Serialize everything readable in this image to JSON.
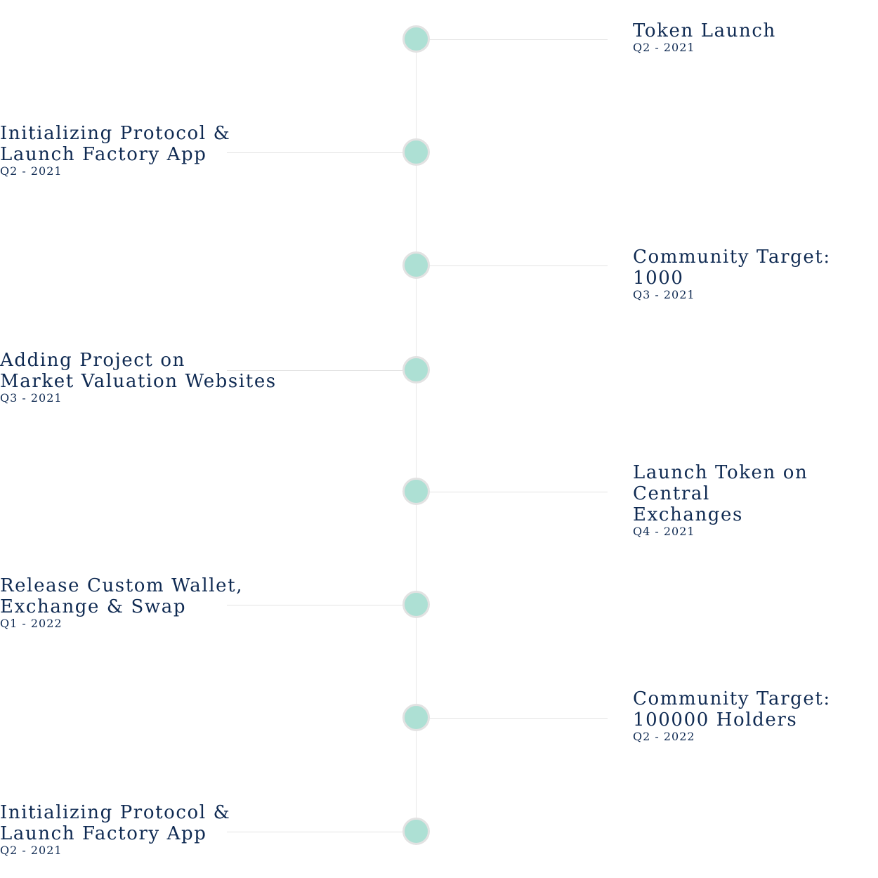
{
  "timeline": {
    "milestones": [
      {
        "side": "right",
        "title": "Token Launch",
        "date": "Q2 - 2021"
      },
      {
        "side": "left",
        "title": "Initializing Protocol &\nLaunch Factory App",
        "date": "Q2 - 2021"
      },
      {
        "side": "right",
        "title": "Community Target: 1000",
        "date": "Q3 - 2021"
      },
      {
        "side": "left",
        "title": "Adding Project on\nMarket Valuation Websites",
        "date": "Q3 - 2021"
      },
      {
        "side": "right",
        "title": "Launch Token on Central\nExchanges",
        "date": "Q4 - 2021"
      },
      {
        "side": "left",
        "title": "Release Custom Wallet,\nExchange & Swap",
        "date": "Q1 - 2022"
      },
      {
        "side": "right",
        "title": "Community Target:\n100000 Holders",
        "date": "Q2 - 2022"
      },
      {
        "side": "left",
        "title": "Initializing Protocol &\nLaunch Factory App",
        "date": "Q2 - 2021"
      }
    ]
  },
  "colors": {
    "text": "#0f2a52",
    "node_fill": "#ade0d4",
    "node_ring": "#e2e2e2",
    "line": "#e3e3e3"
  }
}
